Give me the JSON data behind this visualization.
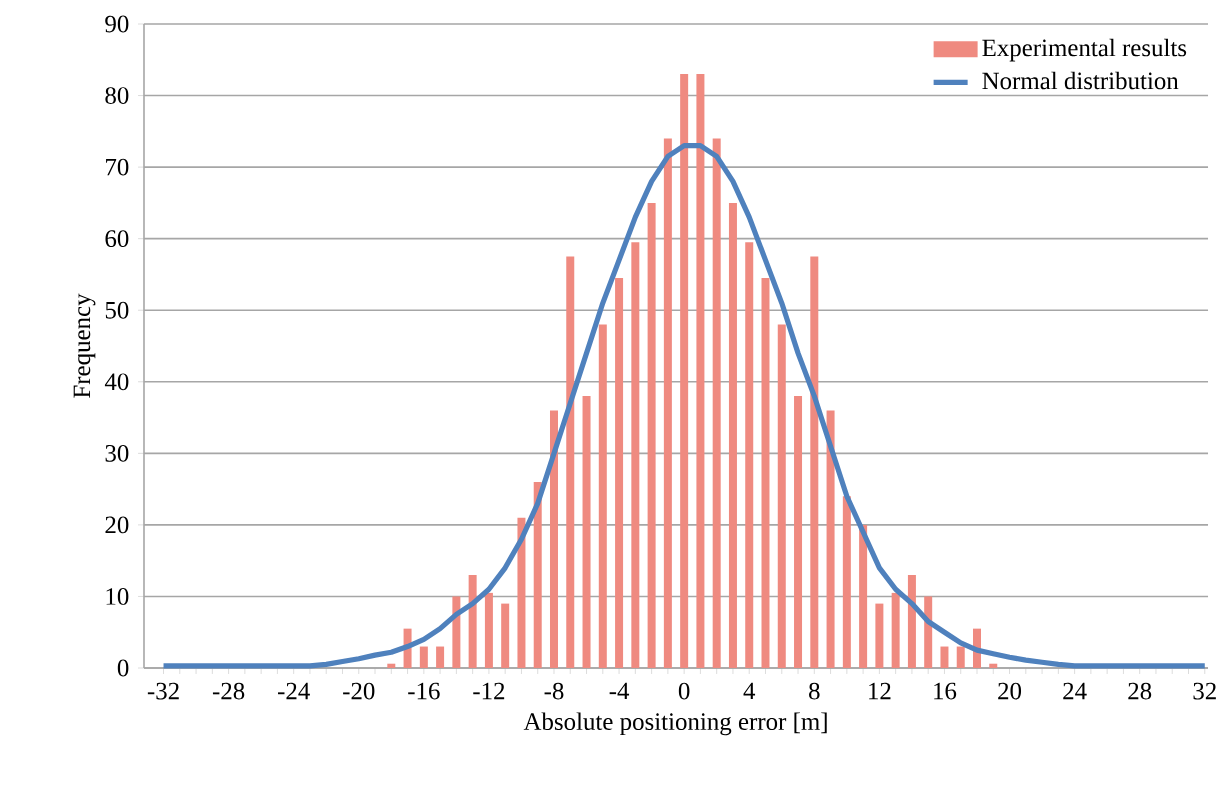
{
  "chart_data": {
    "type": "bar",
    "xlabel": "Absolute positioning error [m]",
    "ylabel": "Frequency",
    "categories": [
      "-32",
      null,
      null,
      null,
      "-28",
      null,
      null,
      null,
      "-24",
      null,
      null,
      null,
      "-20",
      null,
      null,
      null,
      "-16",
      null,
      null,
      null,
      "-12",
      null,
      null,
      null,
      "-8",
      null,
      null,
      null,
      "-4",
      null,
      null,
      null,
      "0",
      null,
      null,
      null,
      "4",
      null,
      null,
      null,
      "8",
      null,
      null,
      null,
      "12",
      null,
      null,
      null,
      "16",
      null,
      null,
      null,
      "20",
      null,
      null,
      null,
      "24",
      null,
      null,
      null,
      "28",
      null,
      null,
      null,
      "32"
    ],
    "series": [
      {
        "name": "Experimental results",
        "color": "#ef8a80",
        "values": [
          0,
          0,
          0,
          0,
          0,
          0,
          0,
          0,
          0,
          0,
          0,
          0,
          0,
          0,
          0.6,
          5.5,
          3,
          3,
          10,
          13,
          10.5,
          9,
          21,
          26,
          36,
          57.5,
          38,
          48,
          54.5,
          59.5,
          65,
          74,
          83,
          83,
          74,
          65,
          59.5,
          54.5,
          48,
          38,
          57.5,
          36,
          24,
          20,
          9,
          10.5,
          13,
          10,
          3,
          3,
          5.5,
          0.6,
          0,
          0,
          0,
          0,
          0,
          0,
          0,
          0,
          0,
          0,
          0,
          0,
          0
        ]
      },
      {
        "name": "Normal distribution",
        "type": "line",
        "color": "#4f81bd",
        "values": [
          0.3,
          0.3,
          0.3,
          0.3,
          0.3,
          0.3,
          0.3,
          0.3,
          0.3,
          0.3,
          0.5,
          0.9,
          1.3,
          1.8,
          2.2,
          3,
          4,
          5.5,
          7.5,
          9,
          11,
          14,
          18,
          23,
          30,
          37,
          44,
          51,
          57,
          63,
          68,
          71.5,
          73,
          73,
          71.5,
          68,
          63,
          57,
          51,
          44,
          38,
          31,
          24,
          19,
          14,
          11,
          9,
          6.5,
          5,
          3.5,
          2.5,
          2,
          1.5,
          1.1,
          0.8,
          0.5,
          0.3,
          0.3,
          0.3,
          0.3,
          0.3,
          0.3,
          0.3,
          0.3,
          0.3
        ]
      }
    ],
    "ylim": [
      0,
      90
    ],
    "yticks": [
      0,
      10,
      20,
      30,
      40,
      50,
      60,
      70,
      80,
      90
    ],
    "grid": "y",
    "legend": "top right"
  }
}
